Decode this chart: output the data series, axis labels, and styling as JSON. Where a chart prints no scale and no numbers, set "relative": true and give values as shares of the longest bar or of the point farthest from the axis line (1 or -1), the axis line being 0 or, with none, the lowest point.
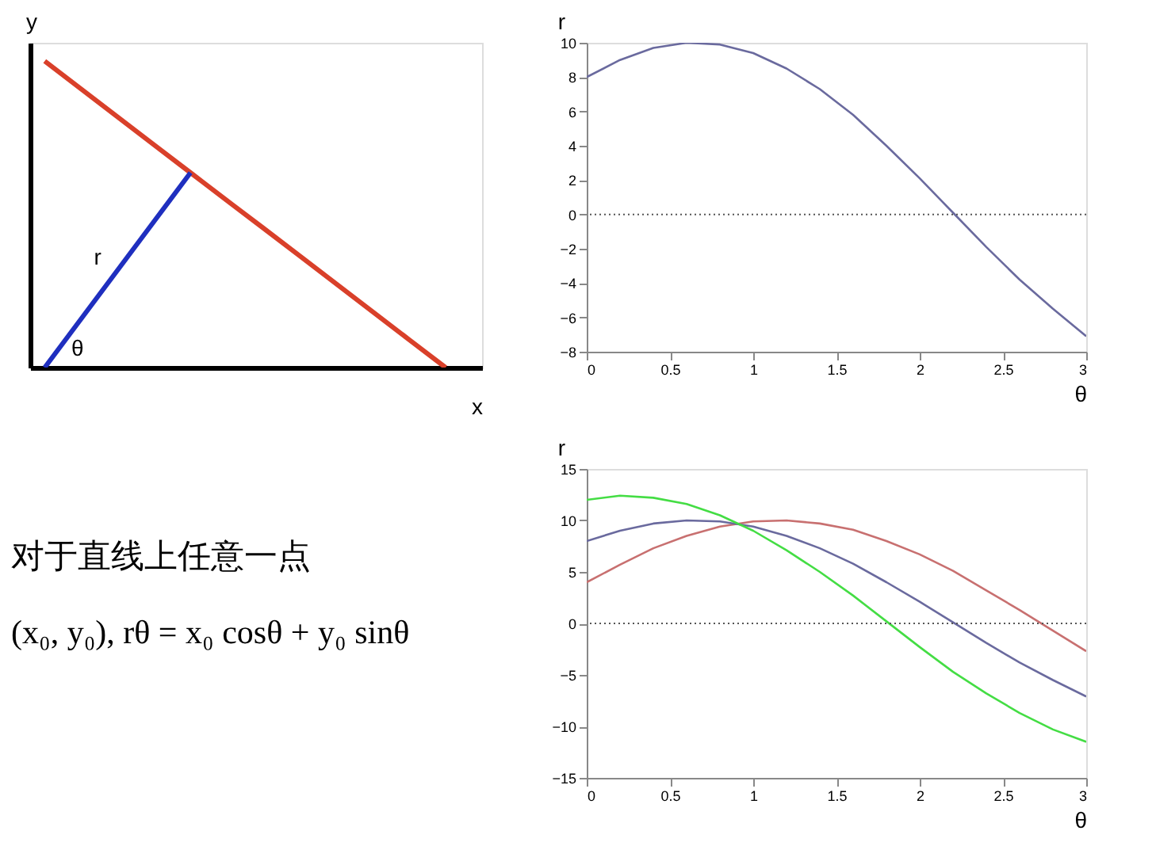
{
  "chart_data": [
    {
      "type": "line",
      "relative": true,
      "xlabel": "x",
      "ylabel": "y",
      "tick_labels": false,
      "grid": false,
      "legend": false,
      "annotations": [
        "r",
        "θ",
        "对于直线上任意一点",
        "(x₀, y₀), rθ = x₀ cosθ + y₀ sinθ"
      ],
      "categories": [
        null,
        null,
        null,
        null,
        null,
        null,
        null,
        null,
        null,
        null,
        null,
        null
      ],
      "series": [
        {
          "color": "#d9402a",
          "values": [
            1,
            0.909,
            0.818,
            0.727,
            0.636,
            0.545,
            0.455,
            0.364,
            0.273,
            0.182,
            0.091,
            0
          ]
        },
        {
          "color": "#1f2fbf",
          "values": [
            0,
            0.159,
            0.318,
            0.477,
            0.636,
            null,
            null,
            null,
            null,
            null,
            null,
            null
          ]
        }
      ]
    },
    {
      "type": "line",
      "xlabel": "θ",
      "ylabel": "r",
      "xlim": [
        0,
        3
      ],
      "xticks": [
        0,
        0.5,
        1,
        1.5,
        2,
        2.5,
        3
      ],
      "ylim": [
        -8,
        10
      ],
      "yticks": [
        -8,
        -6,
        -4,
        -2,
        0,
        2,
        4,
        6,
        8,
        10
      ],
      "grid": false,
      "legend": false,
      "x": [
        0,
        0.2,
        0.4,
        0.6,
        0.8,
        1.0,
        1.2,
        1.4,
        1.6,
        1.8,
        2.0,
        2.2,
        2.4,
        2.6,
        2.8,
        3.0
      ],
      "ref_lines": [
        {
          "axis": "y",
          "value": 0,
          "color": "#555555",
          "line_style": "dotted"
        }
      ],
      "series": [
        {
          "color": "#6a6a9e",
          "values": [
            8,
            9.0,
            9.7,
            10.0,
            9.9,
            9.4,
            8.5,
            7.3,
            5.8,
            4.0,
            2.1,
            0.1,
            -1.9,
            -3.8,
            -5.5,
            -7.1
          ]
        }
      ]
    },
    {
      "type": "line",
      "xlabel": "θ",
      "ylabel": "r",
      "xlim": [
        0,
        3
      ],
      "xticks": [
        0,
        0.5,
        1,
        1.5,
        2,
        2.5,
        3
      ],
      "ylim": [
        -15,
        15
      ],
      "yticks": [
        -15,
        -10,
        -5,
        0,
        5,
        10,
        15
      ],
      "grid": false,
      "legend": false,
      "x": [
        0,
        0.2,
        0.4,
        0.6,
        0.8,
        1.0,
        1.2,
        1.4,
        1.6,
        1.8,
        2.0,
        2.2,
        2.4,
        2.6,
        2.8,
        3.0
      ],
      "ref_lines": [
        {
          "axis": "y",
          "value": 0,
          "color": "#555555",
          "line_style": "dotted"
        }
      ],
      "series": [
        {
          "color": "#c87070",
          "values": [
            4,
            5.7,
            7.3,
            8.5,
            9.4,
            9.9,
            10.0,
            9.7,
            9.1,
            8.0,
            6.7,
            5.1,
            3.2,
            1.3,
            -0.7,
            -2.7
          ]
        },
        {
          "color": "#6a6a9e",
          "values": [
            8,
            9.0,
            9.7,
            10.0,
            9.9,
            9.4,
            8.5,
            7.3,
            5.8,
            4.0,
            2.1,
            0.1,
            -1.9,
            -3.8,
            -5.5,
            -7.1
          ]
        },
        {
          "color": "#44dd44",
          "values": [
            12,
            12.4,
            12.2,
            11.6,
            10.5,
            9.0,
            7.1,
            5.0,
            2.7,
            0.2,
            -2.3,
            -4.7,
            -6.8,
            -8.7,
            -10.3,
            -11.5
          ]
        }
      ]
    }
  ]
}
